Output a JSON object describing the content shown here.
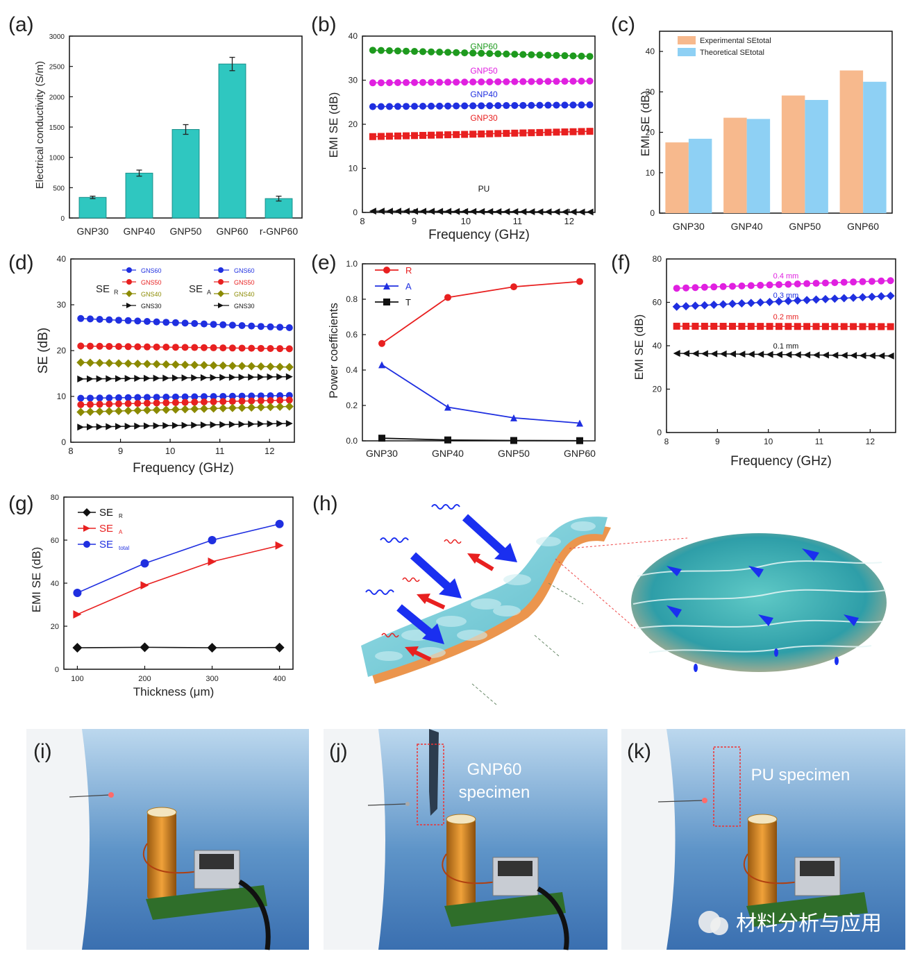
{
  "panel_labels": [
    "(a)",
    "(b)",
    "(c)",
    "(d)",
    "(e)",
    "(f)",
    "(g)",
    "(h)",
    "(i)",
    "(j)",
    "(k)"
  ],
  "watermark": "材料分析与应用",
  "photo_j_caption_1": "GNP60",
  "photo_j_caption_2": "specimen",
  "photo_k_caption": "PU specimen",
  "chart_data": [
    {
      "id": "a",
      "type": "bar",
      "ylabel": "Electrical conductivity (S/m)",
      "categories": [
        "GNP30",
        "GNP40",
        "GNP50",
        "GNP60",
        "r-GNP60"
      ],
      "values": [
        340,
        740,
        1460,
        2540,
        320
      ],
      "errors": [
        20,
        50,
        80,
        110,
        40
      ],
      "yticks": [
        0,
        500,
        1000,
        1500,
        2000,
        2500,
        3000
      ],
      "ylim": [
        0,
        3000
      ],
      "color": "#2fc7c0"
    },
    {
      "id": "b",
      "type": "line",
      "xlabel": "Frequency (GHz)",
      "ylabel": "EMI SE (dB)",
      "xlim": [
        8,
        12.5
      ],
      "ylim": [
        0,
        40
      ],
      "xticks": [
        8,
        9,
        10,
        11,
        12
      ],
      "yticks": [
        0,
        10,
        20,
        30,
        40
      ],
      "series": [
        {
          "name": "GNP60",
          "start": 36.8,
          "end": 35.4,
          "color": "#1e9a1e",
          "marker": "circle"
        },
        {
          "name": "GNP50",
          "start": 29.4,
          "end": 29.8,
          "color": "#e020e0",
          "marker": "circle"
        },
        {
          "name": "GNP40",
          "start": 24.0,
          "end": 24.4,
          "color": "#1f2fe0",
          "marker": "circle"
        },
        {
          "name": "GNP30",
          "start": 17.2,
          "end": 18.4,
          "color": "#e82020",
          "marker": "square"
        },
        {
          "name": "PU",
          "start": 0.3,
          "end": 0.1,
          "color": "#111111",
          "marker": "triangle-left"
        }
      ]
    },
    {
      "id": "c",
      "type": "bar",
      "ylabel": "EMI SE (dB)",
      "categories": [
        "GNP30",
        "GNP40",
        "GNP50",
        "GNP60"
      ],
      "series": [
        {
          "name": "Experimental SEtotal",
          "values": [
            17.5,
            23.6,
            29.1,
            35.3
          ],
          "color": "#f7b98d"
        },
        {
          "name": "Theoretical SEtotal",
          "values": [
            18.4,
            23.3,
            28.0,
            32.5
          ],
          "color": "#8ed0f4"
        }
      ],
      "yticks": [
        0,
        10,
        20,
        30,
        40
      ],
      "ylim": [
        0,
        45
      ]
    },
    {
      "id": "d",
      "type": "line",
      "xlabel": "Frequency (GHz)",
      "ylabel": "SE (dB)",
      "xlim": [
        8,
        12.5
      ],
      "ylim": [
        0,
        40
      ],
      "xticks": [
        8,
        9,
        10,
        11,
        12
      ],
      "yticks": [
        0,
        10,
        20,
        30,
        40
      ],
      "group_labels": [
        "SE",
        "SE"
      ],
      "group_subs": [
        "R",
        "A"
      ],
      "series": [
        {
          "name": "GNS60",
          "group": "R",
          "start": 9.6,
          "end": 10.2,
          "color": "#1f2fe0",
          "marker": "circle"
        },
        {
          "name": "GNS50",
          "group": "R",
          "start": 8.2,
          "end": 9.2,
          "color": "#e82020",
          "marker": "circle"
        },
        {
          "name": "GNS40",
          "group": "R",
          "start": 6.6,
          "end": 7.8,
          "color": "#8b8a00",
          "marker": "diamond"
        },
        {
          "name": "GNS30",
          "group": "R",
          "start": 3.3,
          "end": 4.1,
          "color": "#111111",
          "marker": "triangle-right"
        },
        {
          "name": "GNS60",
          "group": "A",
          "start": 27.0,
          "end": 25.0,
          "color": "#1f2fe0",
          "marker": "circle"
        },
        {
          "name": "GNS50",
          "group": "A",
          "start": 21.0,
          "end": 20.4,
          "color": "#e82020",
          "marker": "circle"
        },
        {
          "name": "GNS40",
          "group": "A",
          "start": 17.4,
          "end": 16.4,
          "color": "#8b8a00",
          "marker": "diamond"
        },
        {
          "name": "GNS30",
          "group": "A",
          "start": 13.8,
          "end": 14.3,
          "color": "#111111",
          "marker": "triangle-right"
        }
      ]
    },
    {
      "id": "e",
      "type": "line",
      "ylabel": "Power coefficients",
      "categories": [
        "GNP30",
        "GNP40",
        "GNP50",
        "GNP60"
      ],
      "ylim": [
        0,
        1
      ],
      "yticks": [
        0.0,
        0.2,
        0.4,
        0.6,
        0.8,
        1.0
      ],
      "series": [
        {
          "name": "R",
          "values": [
            0.55,
            0.81,
            0.87,
            0.9
          ],
          "color": "#e82020",
          "marker": "circle"
        },
        {
          "name": "A",
          "values": [
            0.43,
            0.19,
            0.13,
            0.1
          ],
          "color": "#1f2fe0",
          "marker": "triangle-up"
        },
        {
          "name": "T",
          "values": [
            0.015,
            0.005,
            0.002,
            0.001
          ],
          "color": "#111111",
          "marker": "square"
        }
      ]
    },
    {
      "id": "f",
      "type": "line",
      "xlabel": "Frequency (GHz)",
      "ylabel": "EMI SE (dB)",
      "xlim": [
        8,
        12.5
      ],
      "ylim": [
        0,
        80
      ],
      "xticks": [
        8,
        9,
        10,
        11,
        12
      ],
      "yticks": [
        0,
        20,
        40,
        60,
        80
      ],
      "series": [
        {
          "name": "0.4 mm",
          "start": 66.5,
          "end": 70.0,
          "color": "#e020e0",
          "marker": "circle"
        },
        {
          "name": "0.3 mm",
          "start": 58.0,
          "end": 63.0,
          "color": "#1f2fe0",
          "marker": "diamond"
        },
        {
          "name": "0.2 mm",
          "start": 49.0,
          "end": 48.8,
          "color": "#e82020",
          "marker": "square"
        },
        {
          "name": "0.1 mm",
          "start": 36.5,
          "end": 35.3,
          "color": "#111111",
          "marker": "triangle-left"
        }
      ]
    },
    {
      "id": "g",
      "type": "line",
      "xlabel": "Thickness (μm)",
      "ylabel": "EMI SE (dB)",
      "x": [
        100,
        200,
        300,
        400
      ],
      "xlim": [
        80,
        420
      ],
      "ylim": [
        0,
        80
      ],
      "xticks": [
        100,
        200,
        300,
        400
      ],
      "yticks": [
        0,
        20,
        40,
        60,
        80
      ],
      "series": [
        {
          "name": "SE",
          "sub": "R",
          "values": [
            10.0,
            10.2,
            10.0,
            10.1
          ],
          "color": "#111111",
          "marker": "diamond"
        },
        {
          "name": "SE",
          "sub": "A",
          "values": [
            25.5,
            39.0,
            50.0,
            57.5
          ],
          "color": "#e82020",
          "marker": "triangle-right"
        },
        {
          "name": "SE",
          "sub": "total",
          "values": [
            35.5,
            49.2,
            60.0,
            67.5
          ],
          "color": "#1f2fe0",
          "marker": "circle"
        }
      ]
    }
  ]
}
